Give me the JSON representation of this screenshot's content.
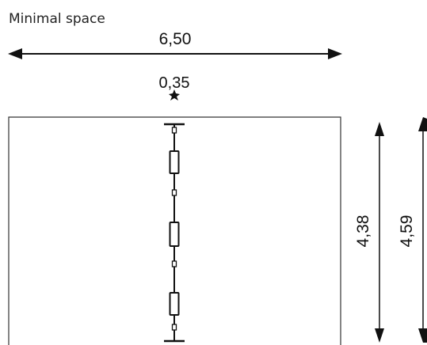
{
  "title": "Minimal space",
  "dimensions": {
    "width": "6,50",
    "gap": "0,35",
    "height_inner": "4,38",
    "height_outer": "4,59"
  },
  "colors": {
    "line": "#111111",
    "frame": "#333333"
  },
  "icons": {
    "chain": "chain-ladder-icon"
  }
}
